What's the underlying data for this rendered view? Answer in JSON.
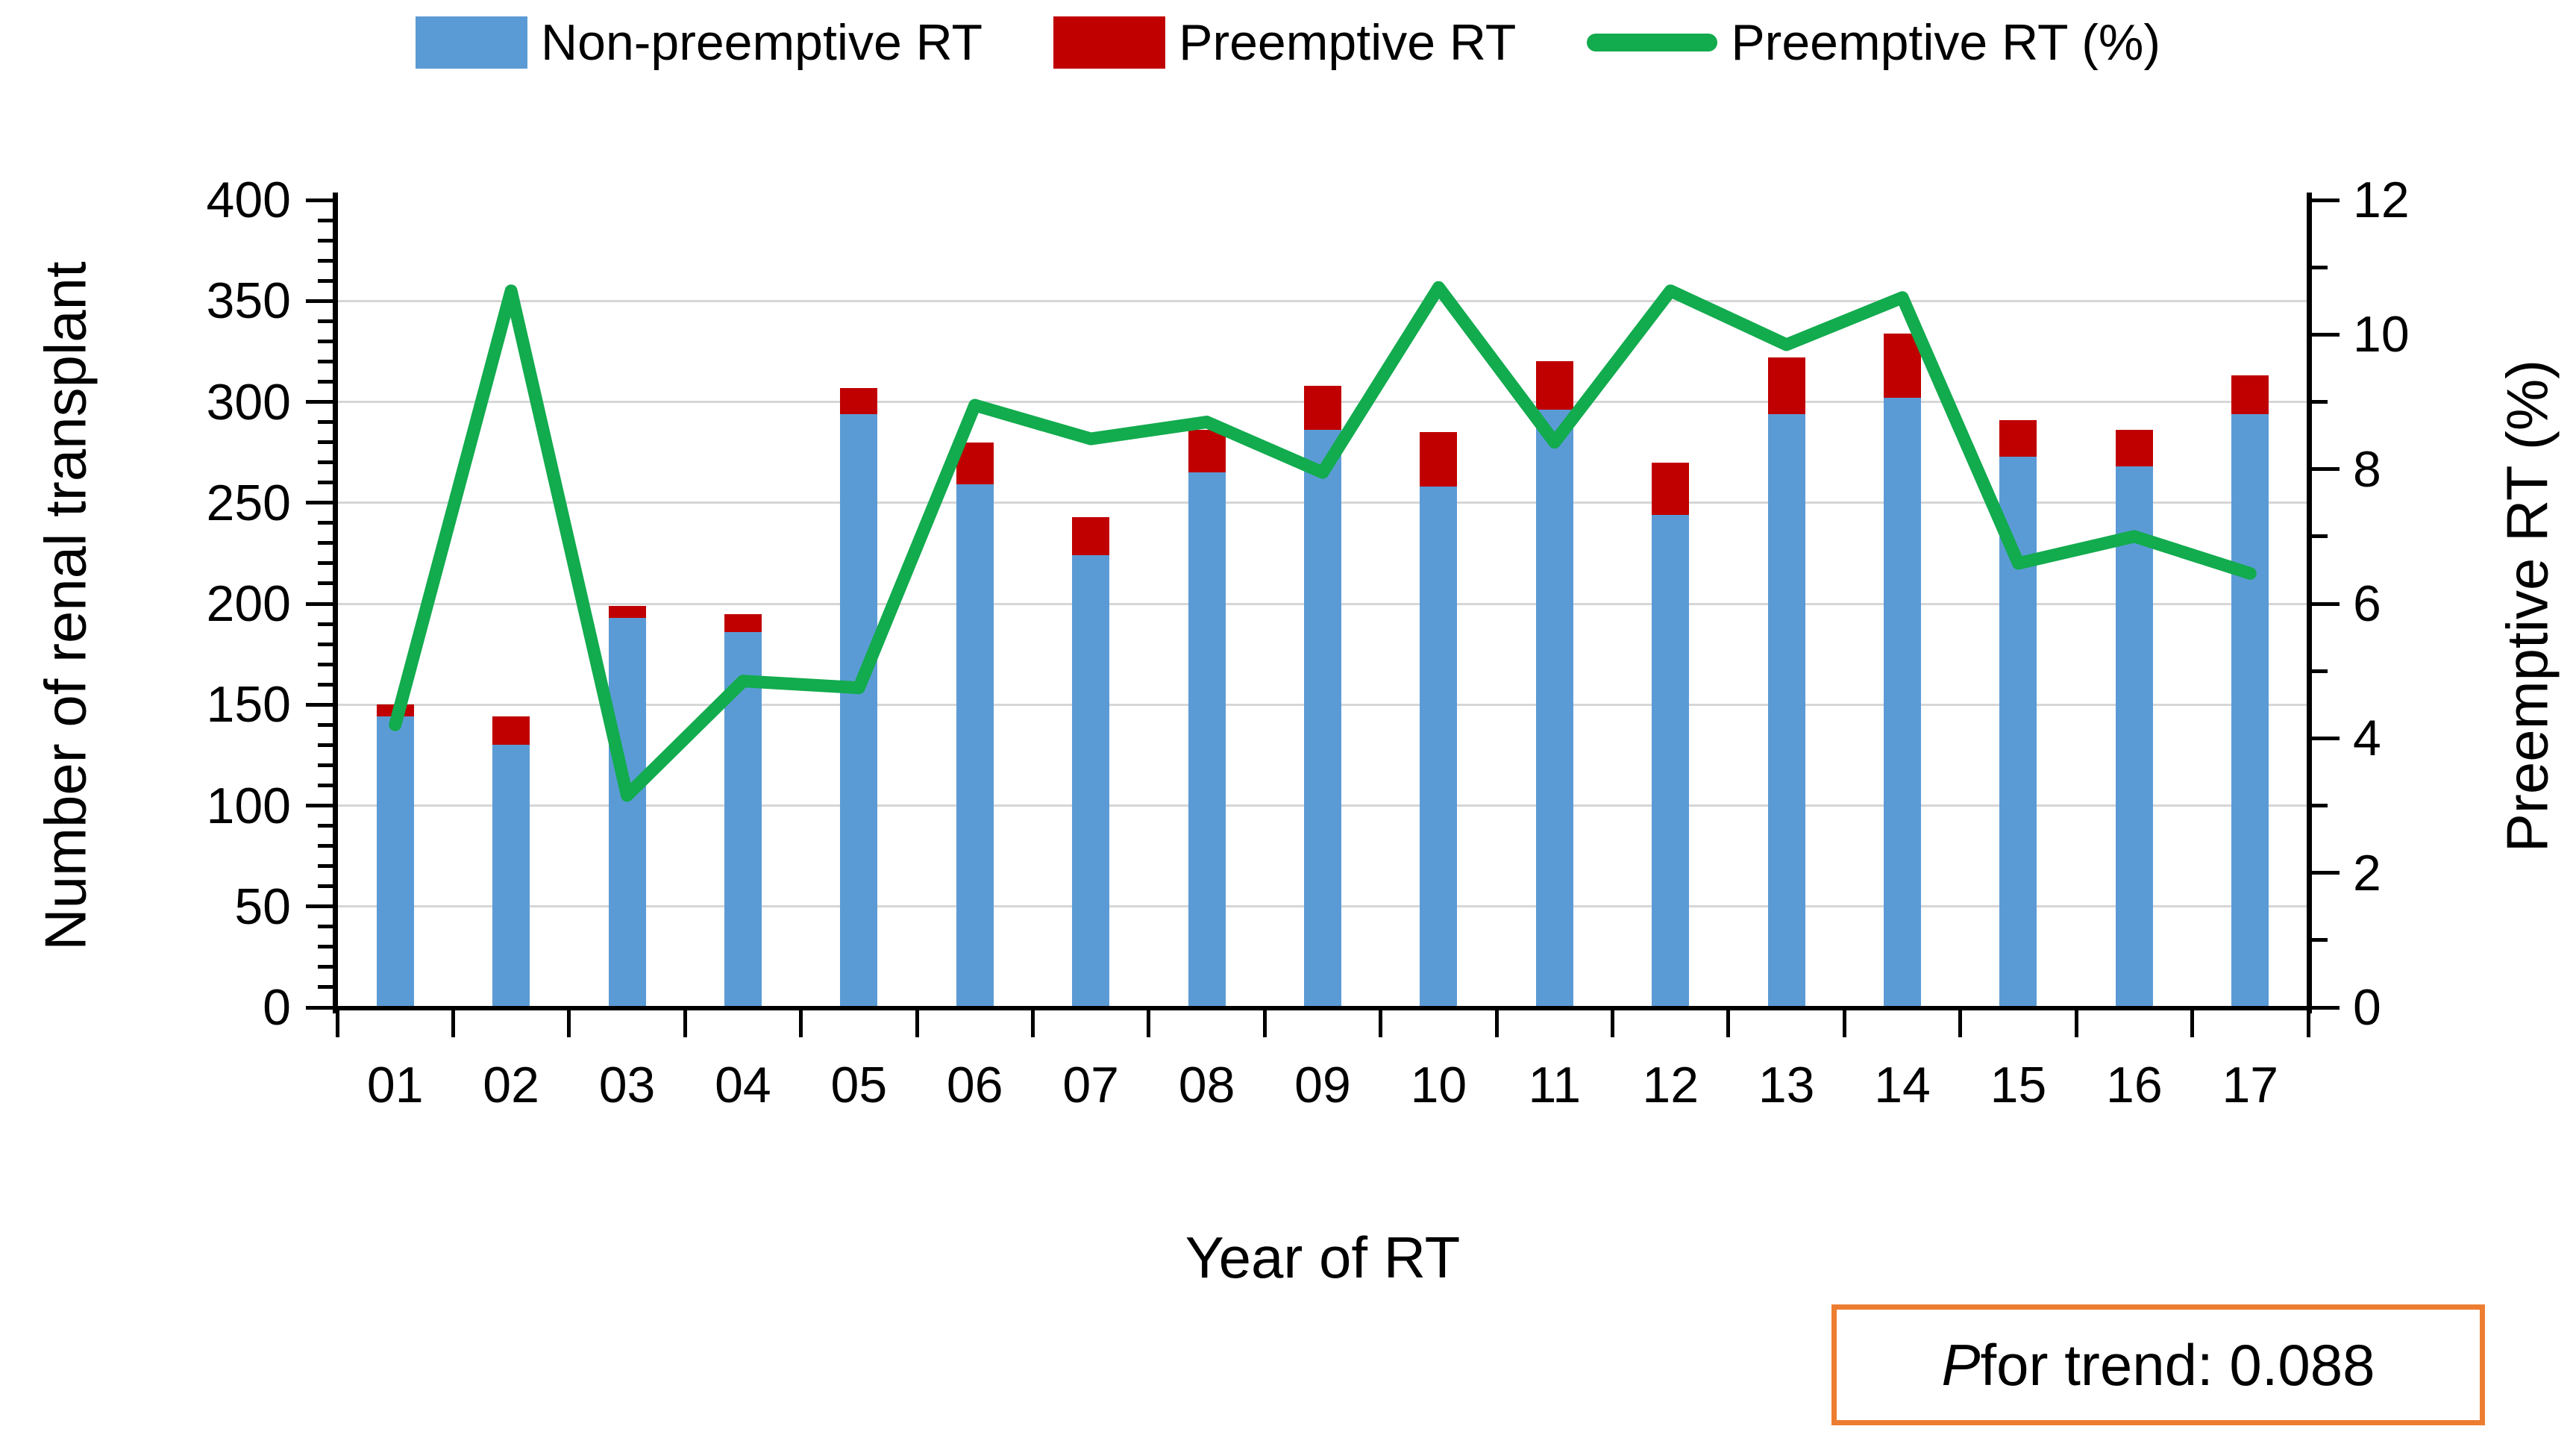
{
  "colors": {
    "bar_blue": "#5B9BD5",
    "bar_red": "#C00000",
    "line_green": "#12AB4E",
    "gridline": "#D6D6D6",
    "annotation_border": "#ED7D31",
    "axis_black": "#000000"
  },
  "legend": [
    {
      "label": "Non-preemptive RT",
      "type": "bar",
      "color": "#5B9BD5"
    },
    {
      "label": "Preemptive RT",
      "type": "bar",
      "color": "#C00000"
    },
    {
      "label": "Preemptive RT (%)",
      "type": "line",
      "color": "#12AB4E"
    }
  ],
  "axes": {
    "left_title": "Number of renal transplant",
    "right_title": "Preemptive RT (%)",
    "x_title": "Year of RT",
    "left_ticks": [
      0,
      50,
      100,
      150,
      200,
      250,
      300,
      350,
      400
    ],
    "right_ticks": [
      0,
      2,
      4,
      6,
      8,
      10,
      12
    ]
  },
  "annotation": {
    "p_italic": "P",
    "p_rest": " for trend: 0.088"
  },
  "chart_data": {
    "type": "bar",
    "subtype": "stacked-bar-with-line",
    "categories": [
      "01",
      "02",
      "03",
      "04",
      "05",
      "06",
      "07",
      "08",
      "09",
      "10",
      "11",
      "12",
      "13",
      "14",
      "15",
      "16",
      "17"
    ],
    "series": [
      {
        "name": "Non-preemptive RT",
        "type": "bar",
        "stack": true,
        "axis": "left",
        "color": "#5B9BD5",
        "values": [
          144,
          130,
          193,
          186,
          294,
          259,
          224,
          265,
          286,
          258,
          296,
          244,
          294,
          302,
          273,
          268,
          294
        ]
      },
      {
        "name": "Preemptive RT",
        "type": "bar",
        "stack": true,
        "axis": "left",
        "color": "#C00000",
        "values": [
          6,
          14,
          6,
          9,
          13,
          21,
          19,
          21,
          22,
          27,
          24,
          26,
          28,
          32,
          18,
          18,
          19
        ]
      },
      {
        "name": "Preemptive RT (%)",
        "type": "line",
        "axis": "right",
        "color": "#12AB4E",
        "values": [
          4.2,
          10.65,
          3.15,
          4.85,
          4.75,
          8.95,
          8.45,
          8.7,
          7.95,
          10.7,
          8.4,
          10.65,
          9.85,
          10.55,
          6.6,
          7.0,
          6.45
        ]
      }
    ],
    "title": "",
    "xlabel": "Year of RT",
    "ylabel_left": "Number of renal transplant",
    "ylabel_right": "Preemptive RT (%)",
    "left_ylim": [
      0,
      400
    ],
    "left_step": 50,
    "right_ylim": [
      0,
      12
    ],
    "right_step": 2,
    "grid": true,
    "legend_position": "top",
    "p_for_trend": "0.088"
  }
}
